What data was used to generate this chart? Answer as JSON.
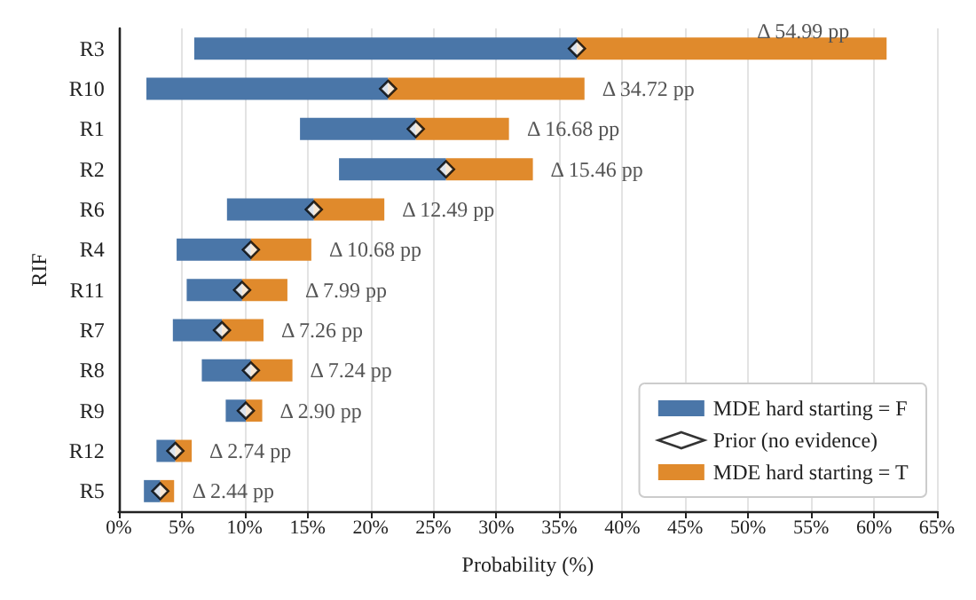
{
  "chart_data": {
    "type": "bar",
    "orientation": "horizontal",
    "xlabel": "Probability (%)",
    "ylabel": "RIF",
    "categories": [
      "R3",
      "R10",
      "R1",
      "R2",
      "R6",
      "R4",
      "R11",
      "R7",
      "R8",
      "R9",
      "R12",
      "R5"
    ],
    "series": [
      {
        "name": "MDE hard starting = F",
        "color": "#4a76a8",
        "base": [
          6.0,
          2.2,
          14.4,
          17.5,
          8.6,
          4.6,
          5.4,
          4.3,
          6.6,
          8.5,
          3.0,
          2.0
        ],
        "values": [
          30.4,
          19.2,
          9.2,
          8.5,
          6.9,
          5.9,
          4.4,
          3.9,
          3.9,
          1.6,
          1.5,
          1.3
        ]
      },
      {
        "name": "Prior (no evidence)",
        "type": "scatter",
        "marker": "diamond",
        "color": "#ffffff",
        "values": [
          36.4,
          21.4,
          23.6,
          26.0,
          15.5,
          10.5,
          9.8,
          8.2,
          10.5,
          10.1,
          4.5,
          3.3
        ]
      },
      {
        "name": "MDE hard starting = T",
        "color": "#e08a2c",
        "base": [
          36.4,
          21.4,
          23.6,
          26.0,
          15.5,
          10.5,
          9.8,
          8.2,
          10.5,
          10.1,
          4.5,
          3.3
        ],
        "values": [
          24.6,
          15.6,
          7.4,
          6.9,
          5.6,
          4.8,
          3.6,
          3.3,
          3.3,
          1.3,
          1.3,
          1.1
        ]
      }
    ],
    "xlim": [
      0,
      65
    ],
    "xticks": [
      {
        "value": 0,
        "label": "0%"
      },
      {
        "value": 5,
        "label": "5%"
      },
      {
        "value": 10,
        "label": "10%"
      },
      {
        "value": 15,
        "label": "15%"
      },
      {
        "value": 20,
        "label": "20%"
      },
      {
        "value": 25,
        "label": "25%"
      },
      {
        "value": 30,
        "label": "30%"
      },
      {
        "value": 35,
        "label": "35%"
      },
      {
        "value": 40,
        "label": "40%"
      },
      {
        "value": 45,
        "label": "45%"
      },
      {
        "value": 50,
        "label": "50%"
      },
      {
        "value": 55,
        "label": "55%"
      },
      {
        "value": 60,
        "label": "60%"
      },
      {
        "value": 65,
        "label": "65%"
      }
    ],
    "annotations": [
      {
        "text": "Δ 54.99 pp",
        "x": 61.0,
        "y": "R3"
      },
      {
        "text": "Δ 34.72 pp",
        "x": 37.0,
        "y": "R10"
      },
      {
        "text": "Δ 16.68 pp",
        "x": 31.03,
        "y": "R1"
      },
      {
        "text": "Δ 15.46 pp",
        "x": 32.9,
        "y": "R2"
      },
      {
        "text": "Δ 12.49 pp",
        "x": 21.1,
        "y": "R6"
      },
      {
        "text": "Δ 10.68 pp",
        "x": 15.3,
        "y": "R4"
      },
      {
        "text": "Δ 7.99 pp",
        "x": 13.4,
        "y": "R11"
      },
      {
        "text": "Δ 7.26 pp",
        "x": 11.5,
        "y": "R7"
      },
      {
        "text": "Δ 7.24 pp",
        "x": 13.8,
        "y": "R8"
      },
      {
        "text": "Δ 2.90 pp",
        "x": 11.4,
        "y": "R9"
      },
      {
        "text": "Δ 2.74 pp",
        "x": 5.8,
        "y": "R12"
      },
      {
        "text": "Δ 2.44 pp",
        "x": 4.44,
        "y": "R5"
      }
    ],
    "grid": "x",
    "legend": "bottom right"
  }
}
